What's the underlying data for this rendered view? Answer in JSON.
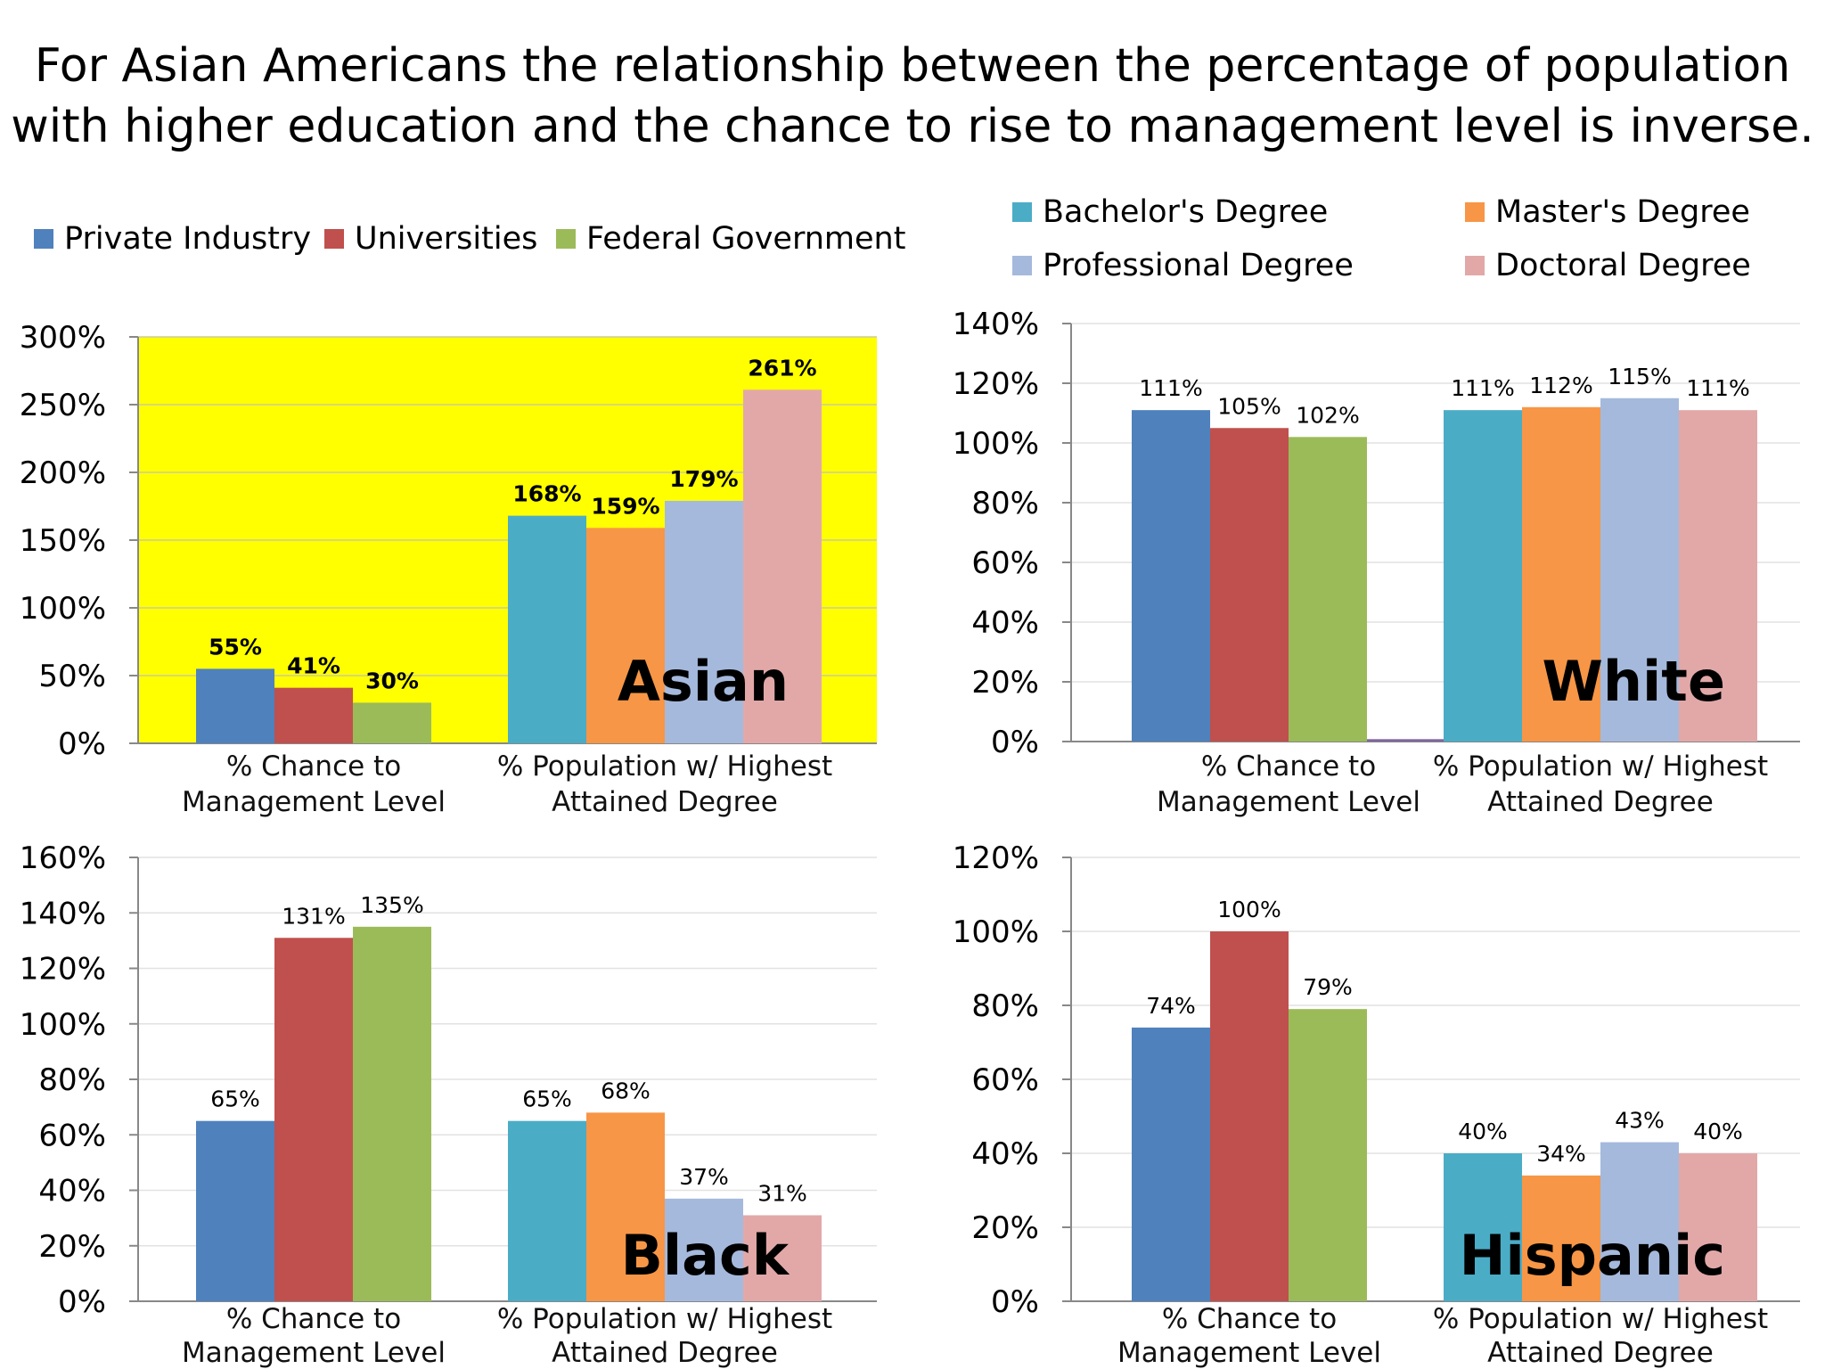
{
  "title": {
    "line1": "For Asian Americans the relationship between the percentage of population",
    "line2": "with higher education and the chance to rise to management level is inverse."
  },
  "legends": {
    "management": [
      {
        "label": "Private Industry",
        "color": "#4f81bd"
      },
      {
        "label": "Universities",
        "color": "#c0504d"
      },
      {
        "label": "Federal Government",
        "color": "#9bbb59"
      }
    ],
    "degree": [
      {
        "label": "Bachelor's Degree",
        "color": "#4bacc6"
      },
      {
        "label": "Master's Degree",
        "color": "#f79646"
      },
      {
        "label": "Professional Degree",
        "color": "#a5b9dc"
      },
      {
        "label": "Doctoral Degree",
        "color": "#e2a8a8"
      }
    ]
  },
  "chart_data": [
    {
      "type": "bar",
      "panel_label": "Asian",
      "background": "#ffff00",
      "ylim": [
        0,
        300
      ],
      "yticks": [
        "0%",
        "50%",
        "100%",
        "150%",
        "200%",
        "250%",
        "300%"
      ],
      "label_style": "bold",
      "categories": [
        "% Chance to\nManagement Level",
        "% Population w/ Highest\nAttained Degree"
      ],
      "groups": [
        {
          "bars": [
            {
              "series": "Private Industry",
              "value": 55,
              "label": "55%"
            },
            {
              "series": "Universities",
              "value": 41,
              "label": "41%"
            },
            {
              "series": "Federal Government",
              "value": 30,
              "label": "30%"
            }
          ]
        },
        {
          "bars": [
            {
              "series": "Bachelor's Degree",
              "value": 168,
              "label": "168%"
            },
            {
              "series": "Master's Degree",
              "value": 159,
              "label": "159%"
            },
            {
              "series": "Professional Degree",
              "value": 179,
              "label": "179%"
            },
            {
              "series": "Doctoral Degree",
              "value": 261,
              "label": "261%"
            }
          ]
        }
      ]
    },
    {
      "type": "bar",
      "panel_label": "White",
      "background": "#ffffff",
      "ylim": [
        0,
        140
      ],
      "yticks": [
        "0%",
        "20%",
        "40%",
        "60%",
        "80%",
        "100%",
        "120%",
        "140%"
      ],
      "label_style": "normal",
      "categories": [
        "% Chance to\nManagement Level",
        "% Population w/ Highest\nAttained Degree"
      ],
      "groups": [
        {
          "bars": [
            {
              "series": "Private Industry",
              "value": 111,
              "label": "111%"
            },
            {
              "series": "Universities",
              "value": 105,
              "label": "105%"
            },
            {
              "series": "Federal Government",
              "value": 102,
              "label": "102%"
            },
            {
              "series": "Doctoral Degree",
              "value": 0.8,
              "label": "",
              "color": "#8064a2"
            }
          ]
        },
        {
          "bars": [
            {
              "series": "Bachelor's Degree",
              "value": 111,
              "label": "111%"
            },
            {
              "series": "Master's Degree",
              "value": 112,
              "label": "112%"
            },
            {
              "series": "Professional Degree",
              "value": 115,
              "label": "115%"
            },
            {
              "series": "Doctoral Degree",
              "value": 111,
              "label": "111%"
            }
          ]
        }
      ]
    },
    {
      "type": "bar",
      "panel_label": "Black",
      "background": "#ffffff",
      "ylim": [
        0,
        160
      ],
      "yticks": [
        "0%",
        "20%",
        "40%",
        "60%",
        "80%",
        "100%",
        "120%",
        "140%",
        "160%"
      ],
      "label_style": "normal",
      "categories": [
        "% Chance to\nManagement Level",
        "% Population w/ Highest\nAttained Degree"
      ],
      "groups": [
        {
          "bars": [
            {
              "series": "Private Industry",
              "value": 65,
              "label": "65%"
            },
            {
              "series": "Universities",
              "value": 131,
              "label": "131%"
            },
            {
              "series": "Federal Government",
              "value": 135,
              "label": "135%"
            }
          ]
        },
        {
          "bars": [
            {
              "series": "Bachelor's Degree",
              "value": 65,
              "label": "65%"
            },
            {
              "series": "Master's Degree",
              "value": 68,
              "label": "68%"
            },
            {
              "series": "Professional Degree",
              "value": 37,
              "label": "37%"
            },
            {
              "series": "Doctoral Degree",
              "value": 31,
              "label": "31%"
            }
          ]
        }
      ]
    },
    {
      "type": "bar",
      "panel_label": "Hispanic",
      "background": "#ffffff",
      "ylim": [
        0,
        120
      ],
      "yticks": [
        "0%",
        "20%",
        "40%",
        "60%",
        "80%",
        "100%",
        "120%"
      ],
      "label_style": "normal",
      "categories": [
        "% Chance to\nManagement Level",
        "% Population w/ Highest\nAttained Degree"
      ],
      "groups": [
        {
          "bars": [
            {
              "series": "Private Industry",
              "value": 74,
              "label": "74%"
            },
            {
              "series": "Universities",
              "value": 100,
              "label": "100%"
            },
            {
              "series": "Federal Government",
              "value": 79,
              "label": "79%"
            }
          ]
        },
        {
          "bars": [
            {
              "series": "Bachelor's Degree",
              "value": 40,
              "label": "40%"
            },
            {
              "series": "Master's Degree",
              "value": 34,
              "label": "34%"
            },
            {
              "series": "Professional Degree",
              "value": 43,
              "label": "43%"
            },
            {
              "series": "Doctoral Degree",
              "value": 40,
              "label": "40%"
            }
          ]
        }
      ]
    }
  ]
}
